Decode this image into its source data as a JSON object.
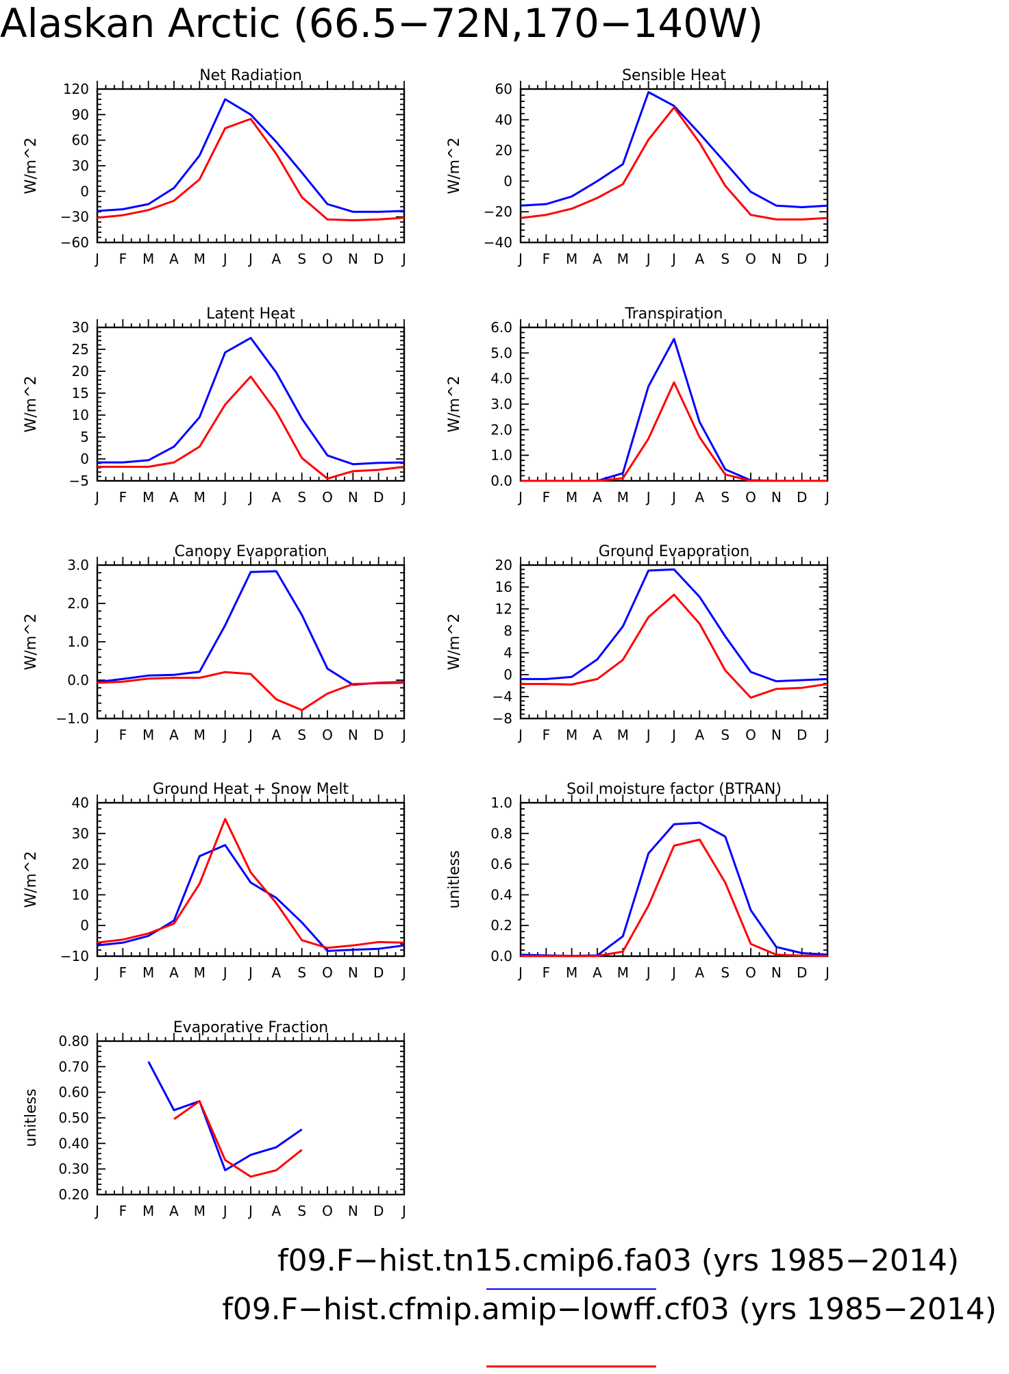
{
  "title": "Alaskan Arctic (66.5−72N,170−140W)",
  "colors": {
    "case1": "#0000ff",
    "case2": "#ff0000"
  },
  "legend": [
    {
      "label": "f09.F−hist.tn15.cmip6.fa03 (yrs 1985−2014)",
      "color": "#0000ff"
    },
    {
      "label": "f09.F−hist.cfmip.amip−lowff.cf03 (yrs 1985−2014)",
      "color": "#ff0000"
    }
  ],
  "chart_data": [
    {
      "type": "line",
      "title": "Net Radiation",
      "ylabel": "W/m^2",
      "categories": [
        "J",
        "F",
        "M",
        "A",
        "M",
        "J",
        "J",
        "A",
        "S",
        "O",
        "N",
        "D",
        "J"
      ],
      "ylim": [
        -60,
        120
      ],
      "yticks": [
        "120",
        "90",
        "60",
        "30",
        "0",
        "−30",
        "−60"
      ],
      "series": [
        {
          "color": "#0000ff",
          "values": [
            -23,
            -21,
            -15,
            4,
            42,
            108,
            90,
            58,
            22,
            -15,
            -24,
            -24,
            -23
          ]
        },
        {
          "color": "#ff0000",
          "values": [
            -31,
            -28,
            -22,
            -11,
            14,
            74,
            85,
            44,
            -7,
            -33,
            -34,
            -33,
            -31
          ]
        }
      ]
    },
    {
      "type": "line",
      "title": "Sensible Heat",
      "ylabel": "W/m^2",
      "categories": [
        "J",
        "F",
        "M",
        "A",
        "M",
        "J",
        "J",
        "A",
        "S",
        "O",
        "N",
        "D",
        "J"
      ],
      "ylim": [
        -40,
        60
      ],
      "yticks": [
        "60",
        "40",
        "20",
        "0",
        "−20",
        "−40"
      ],
      "series": [
        {
          "color": "#0000ff",
          "values": [
            -16,
            -15,
            -10,
            0,
            11,
            58,
            49,
            31,
            12,
            -7,
            -16,
            -17,
            -16
          ]
        },
        {
          "color": "#ff0000",
          "values": [
            -24,
            -22,
            -18,
            -11,
            -2,
            27,
            48,
            25,
            -3,
            -22,
            -25,
            -25,
            -24
          ]
        }
      ]
    },
    {
      "type": "line",
      "title": "Latent Heat",
      "ylabel": "W/m^2",
      "categories": [
        "J",
        "F",
        "M",
        "A",
        "M",
        "J",
        "J",
        "A",
        "S",
        "O",
        "N",
        "D",
        "J"
      ],
      "ylim": [
        -5,
        30
      ],
      "yticks": [
        "30",
        "25",
        "20",
        "15",
        "10",
        "5",
        "0",
        "−5"
      ],
      "series": [
        {
          "color": "#0000ff",
          "values": [
            -0.8,
            -0.8,
            -0.3,
            2.8,
            9.5,
            24.3,
            27.6,
            19.7,
            9.2,
            0.8,
            -1.2,
            -0.9,
            -0.8
          ]
        },
        {
          "color": "#ff0000",
          "values": [
            -1.8,
            -1.8,
            -1.8,
            -0.8,
            2.8,
            12.4,
            18.8,
            10.8,
            0.2,
            -4.5,
            -2.8,
            -2.5,
            -1.8
          ]
        }
      ]
    },
    {
      "type": "line",
      "title": "Transpiration",
      "ylabel": "W/m^2",
      "categories": [
        "J",
        "F",
        "M",
        "A",
        "M",
        "J",
        "J",
        "A",
        "S",
        "O",
        "N",
        "D",
        "J"
      ],
      "ylim": [
        0,
        6
      ],
      "yticks": [
        "6.0",
        "5.0",
        "4.0",
        "3.0",
        "2.0",
        "1.0",
        "0.0"
      ],
      "series": [
        {
          "color": "#0000ff",
          "values": [
            0,
            0,
            0,
            0,
            0.3,
            3.7,
            5.55,
            2.3,
            0.45,
            0.02,
            0,
            0,
            0
          ]
        },
        {
          "color": "#ff0000",
          "values": [
            0,
            0,
            0,
            0,
            0.1,
            1.65,
            3.85,
            1.7,
            0.25,
            0,
            0,
            0,
            0
          ]
        }
      ]
    },
    {
      "type": "line",
      "title": "Canopy Evaporation",
      "ylabel": "W/m^2",
      "categories": [
        "J",
        "F",
        "M",
        "A",
        "M",
        "J",
        "J",
        "A",
        "S",
        "O",
        "N",
        "D",
        "J"
      ],
      "ylim": [
        -1,
        3
      ],
      "yticks": [
        "3.0",
        "2.0",
        "1.0",
        "0.0",
        "−1.0"
      ],
      "series": [
        {
          "color": "#0000ff",
          "values": [
            -0.05,
            0.03,
            0.12,
            0.14,
            0.22,
            1.43,
            2.82,
            2.84,
            1.7,
            0.3,
            -0.12,
            -0.07,
            -0.05
          ]
        },
        {
          "color": "#ff0000",
          "values": [
            -0.07,
            -0.04,
            0.04,
            0.06,
            0.06,
            0.21,
            0.16,
            -0.5,
            -0.78,
            -0.35,
            -0.1,
            -0.08,
            -0.07
          ]
        }
      ]
    },
    {
      "type": "line",
      "title": "Ground Evaporation",
      "ylabel": "W/m^2",
      "categories": [
        "J",
        "F",
        "M",
        "A",
        "M",
        "J",
        "J",
        "A",
        "S",
        "O",
        "N",
        "D",
        "J"
      ],
      "ylim": [
        -8,
        20
      ],
      "yticks": [
        "20",
        "16",
        "12",
        "8",
        "4",
        "0",
        "−4",
        "−8"
      ],
      "series": [
        {
          "color": "#0000ff",
          "values": [
            -0.8,
            -0.8,
            -0.4,
            2.8,
            8.8,
            19,
            19.2,
            14.2,
            7,
            0.5,
            -1.2,
            -1,
            -0.8
          ]
        },
        {
          "color": "#ff0000",
          "values": [
            -1.7,
            -1.7,
            -1.8,
            -0.8,
            2.7,
            10.5,
            14.6,
            9.3,
            0.8,
            -4.2,
            -2.6,
            -2.4,
            -1.7
          ]
        }
      ]
    },
    {
      "type": "line",
      "title": "Ground Heat + Snow Melt",
      "ylabel": "W/m^2",
      "categories": [
        "J",
        "F",
        "M",
        "A",
        "M",
        "J",
        "J",
        "A",
        "S",
        "O",
        "N",
        "D",
        "J"
      ],
      "ylim": [
        -10,
        40
      ],
      "yticks": [
        "40",
        "30",
        "20",
        "10",
        "0",
        "−10"
      ],
      "series": [
        {
          "color": "#0000ff",
          "values": [
            -6.5,
            -5.6,
            -3.4,
            1.6,
            22.6,
            26.2,
            14,
            9,
            1,
            -8.3,
            -7.9,
            -7.6,
            -6.5
          ]
        },
        {
          "color": "#ff0000",
          "values": [
            -5.6,
            -4.6,
            -2.6,
            0.6,
            13.6,
            34.7,
            17.3,
            7.3,
            -4.8,
            -7.3,
            -6.5,
            -5.4,
            -5.6
          ]
        }
      ]
    },
    {
      "type": "line",
      "title": "Soil moisture factor (BTRAN)",
      "ylabel": "unitless",
      "categories": [
        "J",
        "F",
        "M",
        "A",
        "M",
        "J",
        "J",
        "A",
        "S",
        "O",
        "N",
        "D",
        "J"
      ],
      "ylim": [
        0,
        1
      ],
      "yticks": [
        "1.0",
        "0.8",
        "0.6",
        "0.4",
        "0.2",
        "0.0"
      ],
      "series": [
        {
          "color": "#0000ff",
          "values": [
            0.01,
            0.005,
            0.002,
            0.005,
            0.13,
            0.67,
            0.86,
            0.87,
            0.78,
            0.3,
            0.06,
            0.02,
            0.01
          ]
        },
        {
          "color": "#ff0000",
          "values": [
            0.002,
            0.001,
            0.001,
            0.002,
            0.03,
            0.33,
            0.72,
            0.76,
            0.48,
            0.08,
            0.01,
            0.003,
            0.002
          ]
        }
      ]
    },
    {
      "type": "line",
      "title": "Evaporative Fraction",
      "ylabel": "unitless",
      "categories": [
        "J",
        "F",
        "M",
        "A",
        "M",
        "J",
        "J",
        "A",
        "S",
        "O",
        "N",
        "D",
        "J"
      ],
      "ylim": [
        0.2,
        0.8
      ],
      "yticks": [
        "0.80",
        "0.70",
        "0.60",
        "0.50",
        "0.40",
        "0.30",
        "0.20"
      ],
      "series": [
        {
          "color": "#0000ff",
          "values": [
            null,
            null,
            0.72,
            0.53,
            0.565,
            0.295,
            0.355,
            0.385,
            0.455,
            null,
            null,
            null,
            null
          ]
        },
        {
          "color": "#ff0000",
          "values": [
            null,
            null,
            null,
            0.495,
            0.565,
            0.335,
            0.27,
            0.295,
            0.375,
            null,
            null,
            null,
            null
          ]
        }
      ]
    }
  ]
}
